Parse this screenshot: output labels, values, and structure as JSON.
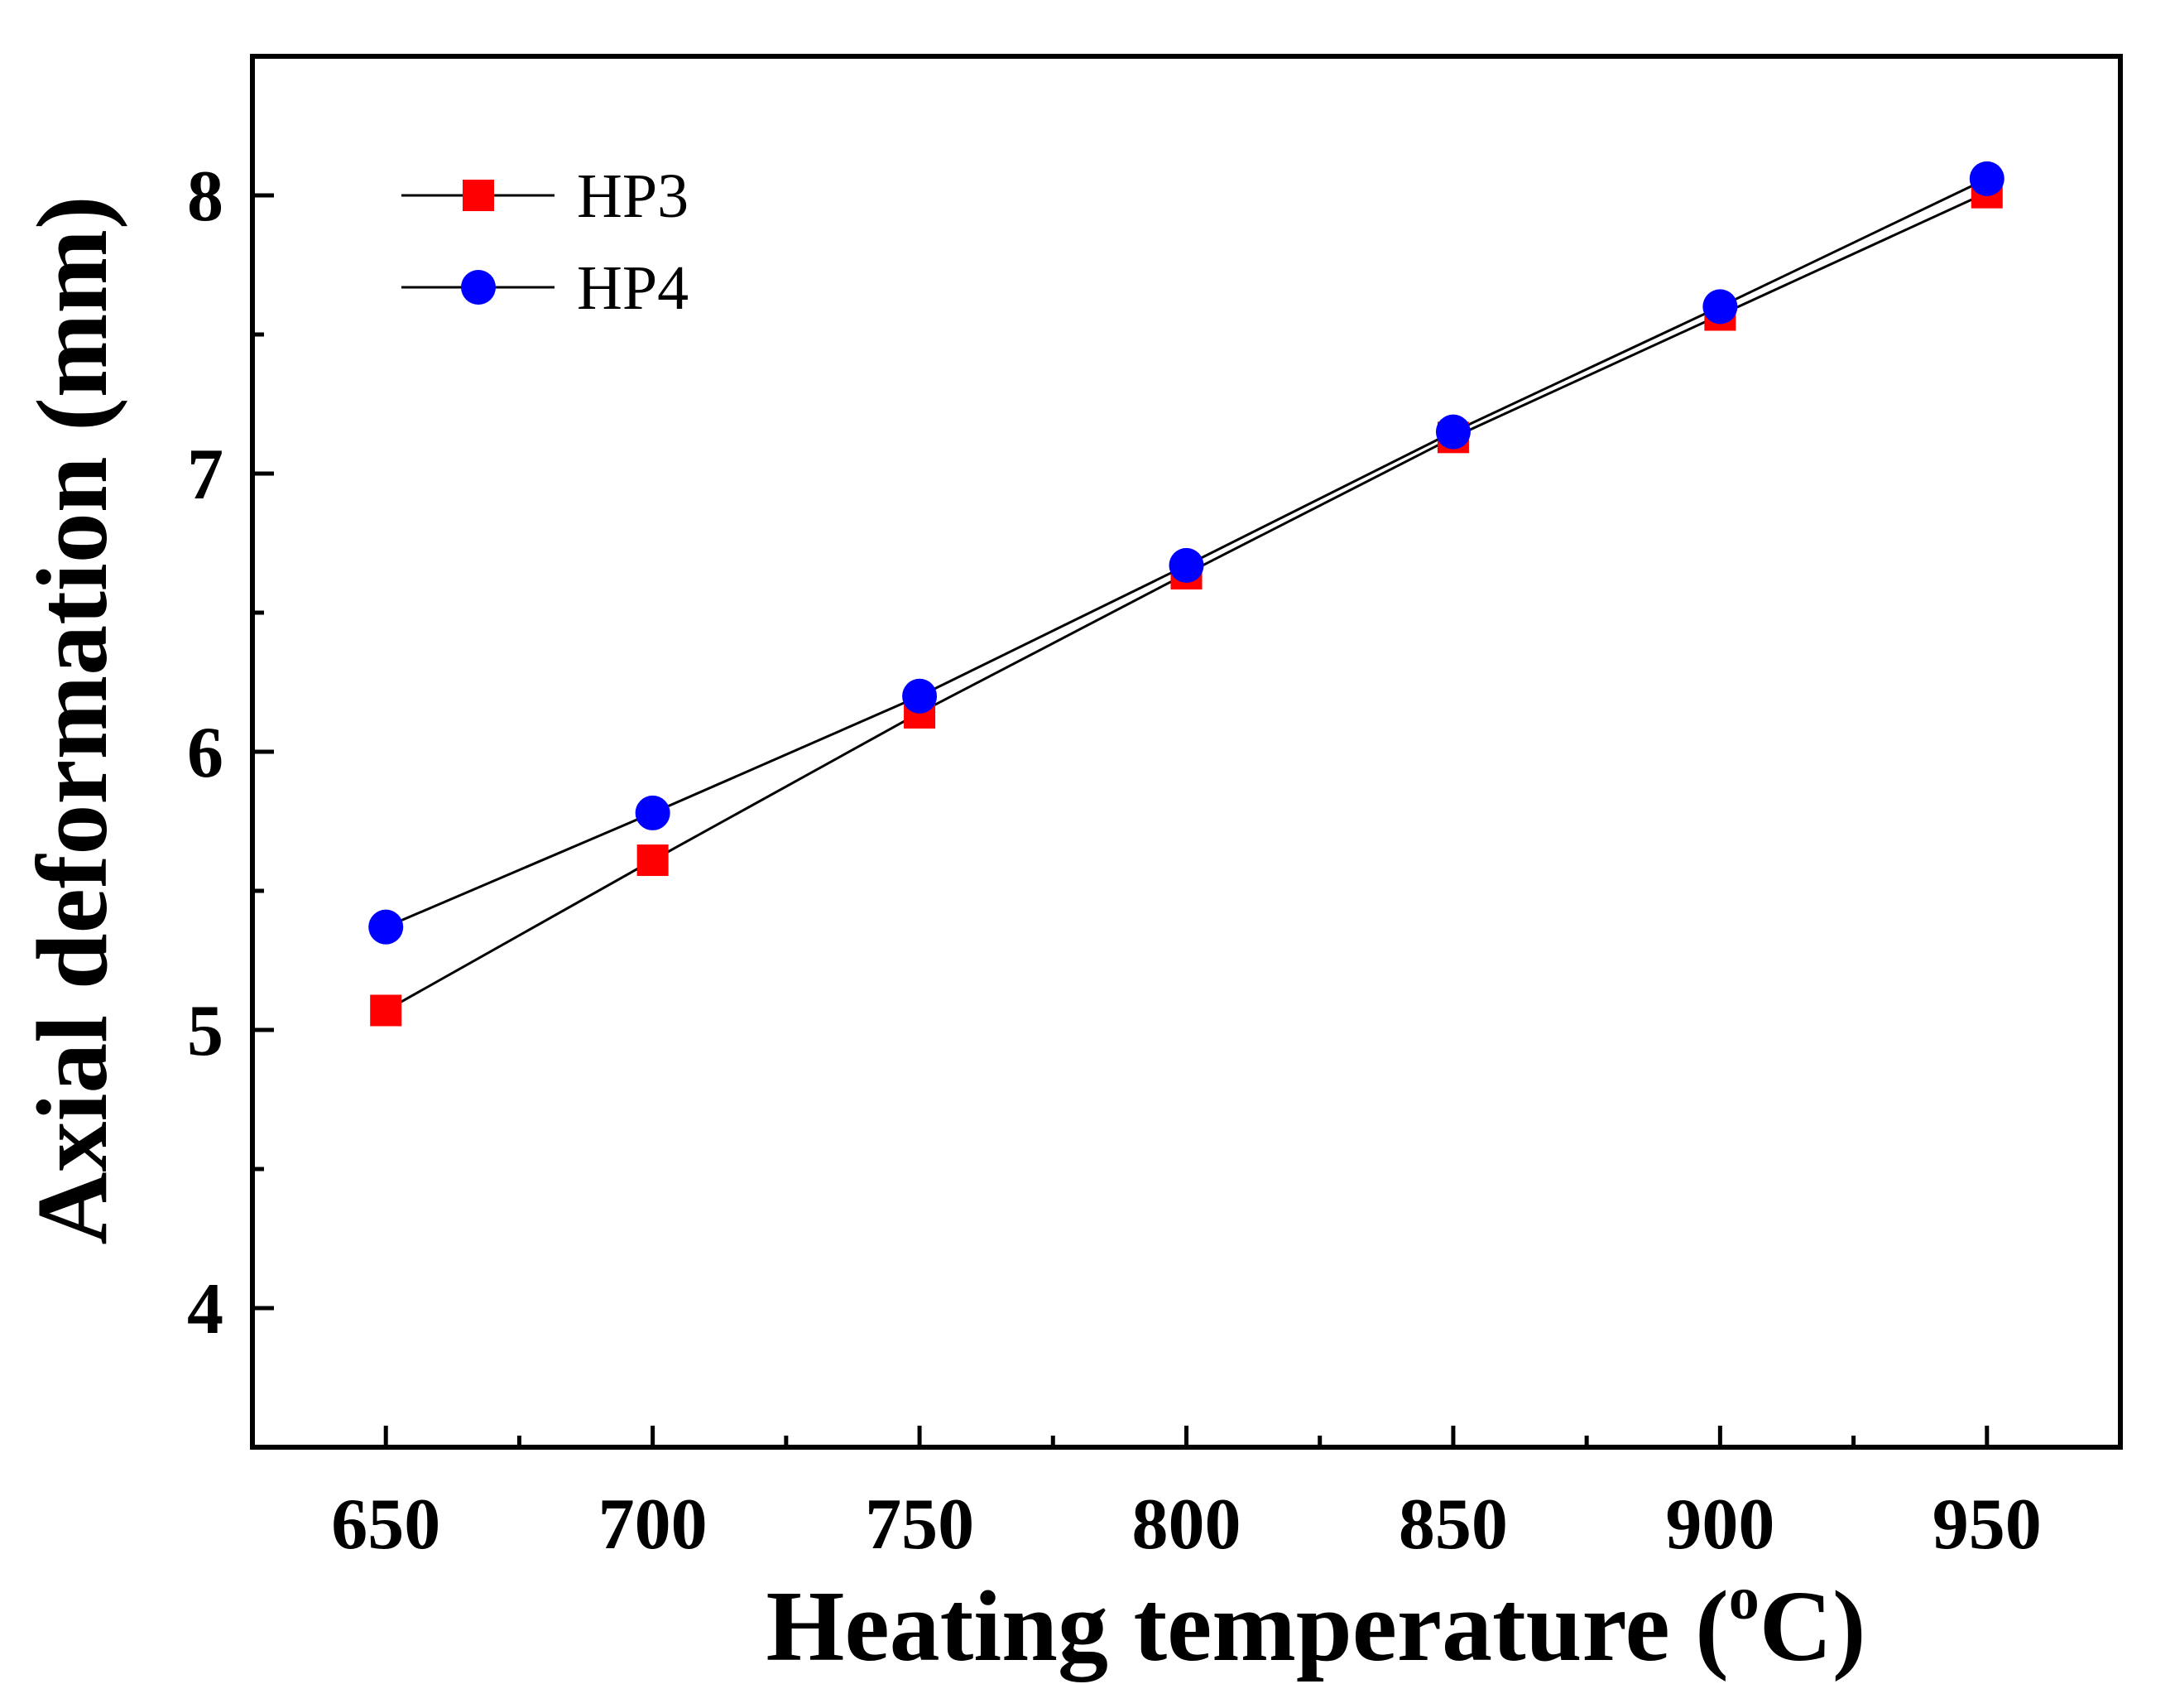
{
  "chart_data": {
    "type": "line",
    "title": "",
    "xlabel": "Heating temperature (",
    "xlabel_super": "o",
    "xlabel_suffix": "C)",
    "ylabel": "Axial deformation (mm)",
    "x": [
      650,
      700,
      750,
      800,
      850,
      900,
      950
    ],
    "xlim": [
      625,
      975
    ],
    "ylim": [
      3.5,
      8.5
    ],
    "x_ticks_major": [
      650,
      700,
      750,
      800,
      850,
      900,
      950
    ],
    "x_ticks_minor": [
      675,
      725,
      775,
      825,
      875,
      925
    ],
    "y_ticks_major": [
      4,
      5,
      6,
      7,
      8
    ],
    "y_ticks_minor": [
      4.5,
      5.5,
      6.5,
      7.5
    ],
    "x_tick_labels": [
      "650",
      "700",
      "750",
      "800",
      "850",
      "900",
      "950"
    ],
    "y_tick_labels": [
      "4",
      "5",
      "6",
      "7",
      "8"
    ],
    "grid": false,
    "legend_position": "top-left",
    "series": [
      {
        "name": "HP3",
        "marker": "square",
        "color": "#ff0000",
        "line_color": "#000000",
        "values": [
          5.07,
          5.61,
          6.14,
          6.64,
          7.13,
          7.57,
          8.01
        ]
      },
      {
        "name": "HP4",
        "marker": "circle",
        "color": "#0000ff",
        "line_color": "#000000",
        "values": [
          5.37,
          5.78,
          6.2,
          6.67,
          7.15,
          7.6,
          8.06
        ]
      }
    ]
  }
}
